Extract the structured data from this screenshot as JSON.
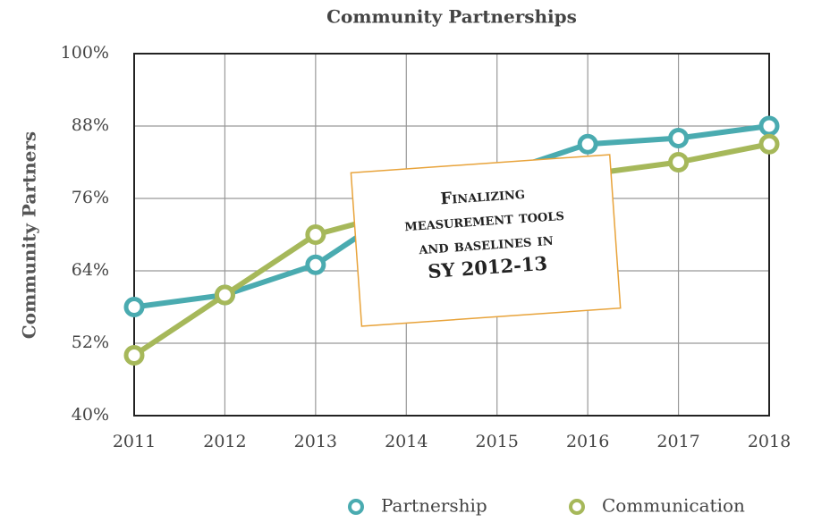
{
  "chart_data": {
    "type": "line",
    "title": "Community Partnerships",
    "ylabel": "Community Partners",
    "categories": [
      "2011",
      "2012",
      "2013",
      "2014",
      "2015",
      "2016",
      "2017",
      "2018"
    ],
    "series": [
      {
        "name": "Partnership",
        "color": "#4aabb0",
        "values": [
          58,
          60,
          65,
          75,
          80,
          85,
          86,
          88
        ]
      },
      {
        "name": "Communication",
        "color": "#a6b85a",
        "values": [
          50,
          60,
          70,
          74,
          77,
          80,
          82,
          85
        ]
      }
    ],
    "ylim": [
      40,
      100
    ],
    "yticks": [
      {
        "value": 40,
        "label": "40%"
      },
      {
        "value": 52,
        "label": "52%"
      },
      {
        "value": 64,
        "label": "64%"
      },
      {
        "value": 76,
        "label": "76%"
      },
      {
        "value": 88,
        "label": "88%"
      },
      {
        "value": 100,
        "label": "100%"
      }
    ],
    "grid": true,
    "legend": "bottom",
    "annotation": [
      "Finalizing",
      "measurement tools",
      "and baselines in",
      "SY 2012-13"
    ]
  }
}
